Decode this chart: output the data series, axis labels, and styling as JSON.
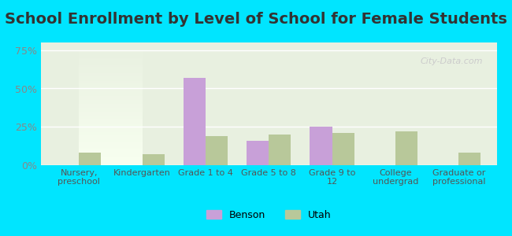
{
  "title": "School Enrollment by Level of School for Female Students",
  "categories": [
    "Nursery,\npreschool",
    "Kindergarten",
    "Grade 1 to 4",
    "Grade 5 to 8",
    "Grade 9 to\n12",
    "College\nundergrad",
    "Graduate or\nprofessional"
  ],
  "benson_values": [
    0,
    0,
    57,
    16,
    25,
    0,
    0
  ],
  "utah_values": [
    8,
    7,
    19,
    20,
    21,
    22,
    8
  ],
  "benson_color": "#c8a0d8",
  "utah_color": "#b8c89a",
  "background_outer": "#00e5ff",
  "background_inner_top": "#e8f0e0",
  "background_inner_bottom": "#f8fff0",
  "ylim": [
    0,
    80
  ],
  "yticks": [
    0,
    25,
    50,
    75
  ],
  "ytick_labels": [
    "0%",
    "25%",
    "50%",
    "75%"
  ],
  "legend_labels": [
    "Benson",
    "Utah"
  ],
  "title_fontsize": 14,
  "bar_width": 0.35
}
